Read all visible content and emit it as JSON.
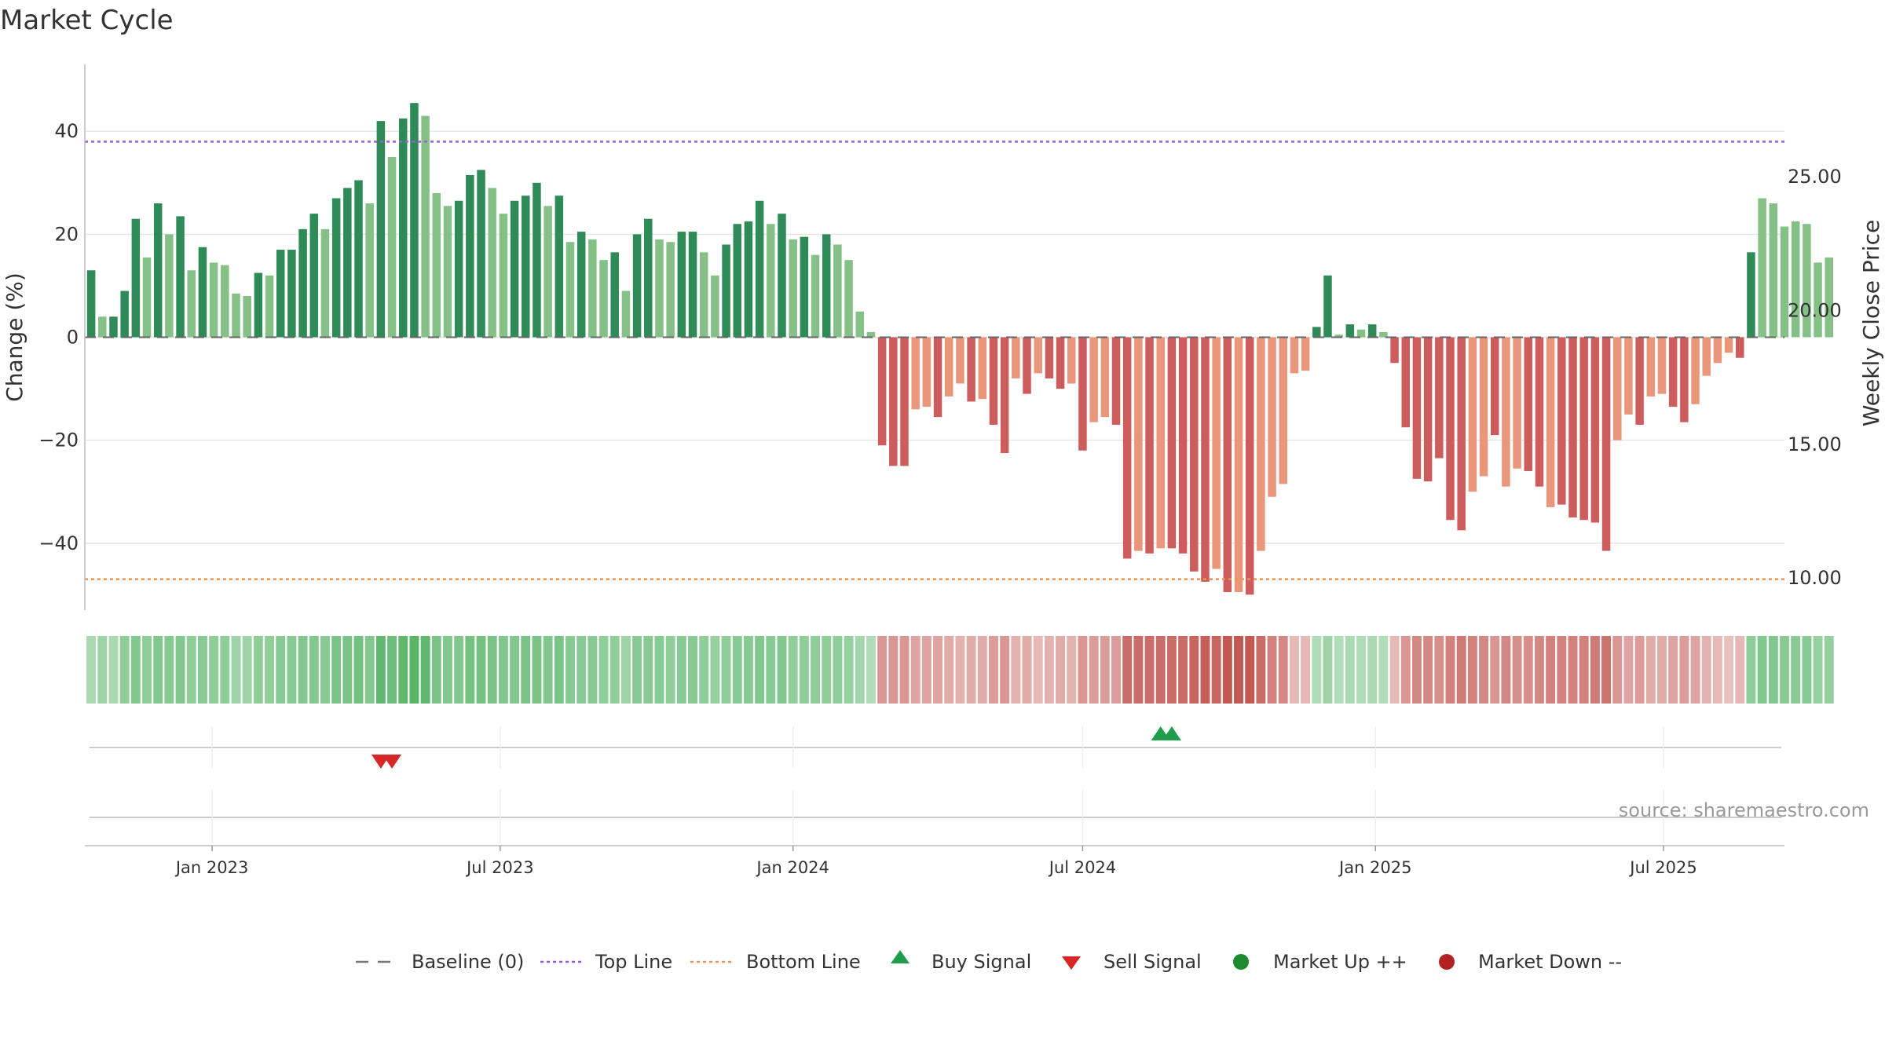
{
  "chart_data": {
    "type": "bar",
    "title": "Market Cycle",
    "ylabel_left": "Change (%)",
    "ylabel_right": "Weekly Close Price",
    "ylim_left": [
      -53,
      53
    ],
    "yticks_left": [
      40,
      20,
      0,
      -20,
      -40
    ],
    "yticks_left_labels": [
      "40",
      "20",
      "0",
      "−20",
      "−40"
    ],
    "ylim_right": [
      8.8,
      29.2
    ],
    "yticks_right": [
      25,
      20,
      15,
      10
    ],
    "yticks_right_labels": [
      "25.00",
      "20.00",
      "15.00",
      "10.00"
    ],
    "x_range": [
      "2022-10-13",
      "2025-09-15"
    ],
    "x_ticks": [
      {
        "date": "2023-01-01",
        "label": "Jan 2023"
      },
      {
        "date": "2023-07-01",
        "label": "Jul 2023"
      },
      {
        "date": "2024-01-01",
        "label": "Jan 2024"
      },
      {
        "date": "2024-07-01",
        "label": "Jul 2024"
      },
      {
        "date": "2025-01-01",
        "label": "Jan 2025"
      },
      {
        "date": "2025-07-01",
        "label": "Jul 2025"
      }
    ],
    "start_week": "2022-10-17",
    "week_step_days": 7,
    "values": [
      13,
      4,
      4,
      9,
      23,
      15.5,
      26,
      20,
      23.5,
      13,
      17.5,
      14.5,
      14,
      8.5,
      8,
      12.5,
      12,
      17,
      17,
      21,
      24,
      21,
      27,
      29,
      30.5,
      26,
      42,
      35,
      42.5,
      45.5,
      43,
      28,
      25.5,
      26.5,
      31.5,
      32.5,
      29,
      24,
      26.5,
      27.5,
      30,
      25.5,
      27.5,
      18.5,
      20.5,
      19,
      15,
      16.5,
      9,
      20,
      23,
      19,
      18.5,
      20.5,
      20.5,
      16.5,
      12,
      18,
      22,
      22.5,
      26.5,
      22,
      24,
      19,
      19.5,
      16,
      20,
      18,
      15,
      5,
      1,
      -21,
      -25,
      -25,
      -14,
      -13.5,
      -15.5,
      -11.5,
      -9,
      -12.5,
      -12,
      -17,
      -22.5,
      -8,
      -11,
      -7,
      -8,
      -10,
      -9,
      -22,
      -16.5,
      -15.5,
      -17,
      -43,
      -41.5,
      -42,
      -41,
      -41,
      -42,
      -45.5,
      -47.5,
      -45,
      -49.5,
      -49.5,
      -50,
      -41.5,
      -31,
      -28.5,
      -7,
      -6.5,
      2,
      12,
      0.5,
      2.5,
      1.5,
      2.5,
      1,
      -5,
      -17.5,
      -27.5,
      -28,
      -23.5,
      -35.5,
      -37.5,
      -30,
      -27,
      -19,
      -29,
      -25.5,
      -26,
      -29,
      -33,
      -32.5,
      -35,
      -35.5,
      -36,
      -41.5,
      -20,
      -15,
      -17,
      -11.5,
      -11,
      -13.5,
      -16.5,
      -13,
      -7.5,
      -5,
      -3,
      -4,
      16.5,
      27,
      26,
      21.5,
      22.5,
      22,
      14.5,
      15.5
    ],
    "shade": [
      "d",
      "l",
      "d",
      "d",
      "d",
      "l",
      "d",
      "l",
      "d",
      "l",
      "d",
      "l",
      "l",
      "l",
      "l",
      "d",
      "l",
      "d",
      "d",
      "d",
      "d",
      "l",
      "d",
      "d",
      "d",
      "l",
      "d",
      "l",
      "d",
      "d",
      "l",
      "l",
      "l",
      "d",
      "d",
      "d",
      "l",
      "l",
      "d",
      "d",
      "d",
      "l",
      "d",
      "l",
      "d",
      "l",
      "l",
      "d",
      "l",
      "d",
      "d",
      "l",
      "l",
      "d",
      "d",
      "l",
      "l",
      "d",
      "d",
      "d",
      "d",
      "l",
      "d",
      "l",
      "d",
      "l",
      "d",
      "l",
      "l",
      "l",
      "l",
      "d",
      "d",
      "d",
      "l",
      "l",
      "d",
      "l",
      "l",
      "d",
      "l",
      "d",
      "d",
      "l",
      "d",
      "l",
      "d",
      "d",
      "l",
      "d",
      "l",
      "l",
      "d",
      "d",
      "l",
      "d",
      "l",
      "d",
      "d",
      "d",
      "d",
      "l",
      "d",
      "l",
      "d",
      "l",
      "l",
      "l",
      "l",
      "l",
      "d",
      "d",
      "l",
      "d",
      "l",
      "d",
      "l",
      "d",
      "d",
      "d",
      "d",
      "d",
      "d",
      "d",
      "l",
      "l",
      "d",
      "l",
      "l",
      "d",
      "d",
      "l",
      "d",
      "d",
      "d",
      "d",
      "d",
      "l",
      "l",
      "d",
      "l",
      "l",
      "d",
      "d",
      "l",
      "l",
      "l",
      "l",
      "d",
      "d",
      "l",
      "l",
      "l",
      "l",
      "l",
      "l"
    ],
    "top_line": 38,
    "bottom_line": -47,
    "heat_strip": [
      0.3,
      0.4,
      0.3,
      0.5,
      0.6,
      0.5,
      0.6,
      0.55,
      0.6,
      0.5,
      0.55,
      0.5,
      0.5,
      0.4,
      0.4,
      0.5,
      0.5,
      0.55,
      0.55,
      0.6,
      0.6,
      0.55,
      0.65,
      0.65,
      0.7,
      0.6,
      0.85,
      0.75,
      0.85,
      0.9,
      0.85,
      0.65,
      0.6,
      0.6,
      0.7,
      0.7,
      0.65,
      0.6,
      0.6,
      0.65,
      0.65,
      0.6,
      0.65,
      0.55,
      0.55,
      0.55,
      0.5,
      0.5,
      0.4,
      0.55,
      0.55,
      0.55,
      0.5,
      0.55,
      0.55,
      0.5,
      0.45,
      0.5,
      0.55,
      0.55,
      0.6,
      0.55,
      0.6,
      0.5,
      0.5,
      0.5,
      0.5,
      0.5,
      0.45,
      0.35,
      0.25,
      -0.5,
      -0.5,
      -0.5,
      -0.4,
      -0.4,
      -0.4,
      -0.35,
      -0.3,
      -0.35,
      -0.35,
      -0.45,
      -0.5,
      -0.3,
      -0.35,
      -0.25,
      -0.3,
      -0.35,
      -0.3,
      -0.5,
      -0.45,
      -0.45,
      -0.45,
      -0.8,
      -0.8,
      -0.8,
      -0.8,
      -0.8,
      -0.8,
      -0.85,
      -0.9,
      -0.85,
      -0.95,
      -0.95,
      -0.95,
      -0.8,
      -0.65,
      -0.6,
      -0.25,
      -0.25,
      0.25,
      0.4,
      0.25,
      0.3,
      0.25,
      0.3,
      0.25,
      -0.25,
      -0.5,
      -0.6,
      -0.6,
      -0.55,
      -0.65,
      -0.7,
      -0.65,
      -0.6,
      -0.5,
      -0.6,
      -0.55,
      -0.55,
      -0.6,
      -0.65,
      -0.65,
      -0.65,
      -0.65,
      -0.7,
      -0.75,
      -0.5,
      -0.4,
      -0.45,
      -0.35,
      -0.35,
      -0.4,
      -0.45,
      -0.4,
      -0.3,
      -0.25,
      -0.2,
      -0.25,
      0.5,
      0.6,
      0.6,
      0.55,
      0.55,
      0.55,
      0.45,
      0.45
    ],
    "buy_signals": [
      "2024-08-19",
      "2024-08-26"
    ],
    "sell_signals": [
      "2023-04-17",
      "2023-04-24"
    ],
    "source": "source: sharemaestro.com",
    "legend": [
      {
        "label": "Baseline (0)",
        "symbol": "dash",
        "color": "#777777"
      },
      {
        "label": "Top Line",
        "symbol": "dot",
        "color": "#9c5fdc"
      },
      {
        "label": "Bottom Line",
        "symbol": "dot",
        "color": "#e8955a"
      },
      {
        "label": "Buy Signal",
        "symbol": "triangle-up",
        "color": "#1e9e4a"
      },
      {
        "label": "Sell Signal",
        "symbol": "triangle-down",
        "color": "#d62828"
      },
      {
        "label": "Market Up ++",
        "symbol": "circle",
        "color": "#1e8a2e"
      },
      {
        "label": "Market Down --",
        "symbol": "circle",
        "color": "#b22222"
      }
    ],
    "legend_position": "bottom",
    "grid": true
  },
  "colors": {
    "up_dark": "#2e8b57",
    "up_light": "#85c187",
    "down_dark": "#cd5c5c",
    "down_light": "#e9967a",
    "heat_up": "#4caf5c",
    "heat_down": "#c0504a"
  }
}
